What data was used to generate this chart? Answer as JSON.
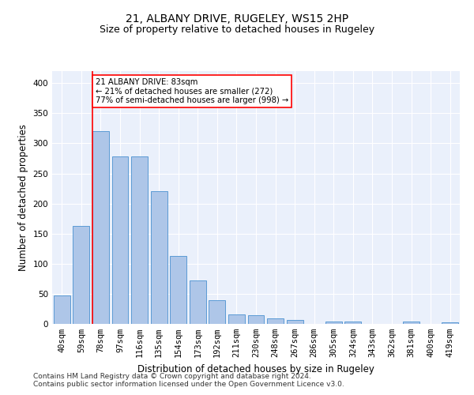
{
  "title1": "21, ALBANY DRIVE, RUGELEY, WS15 2HP",
  "title2": "Size of property relative to detached houses in Rugeley",
  "xlabel": "Distribution of detached houses by size in Rugeley",
  "ylabel": "Number of detached properties",
  "bar_labels": [
    "40sqm",
    "59sqm",
    "78sqm",
    "97sqm",
    "116sqm",
    "135sqm",
    "154sqm",
    "173sqm",
    "192sqm",
    "211sqm",
    "230sqm",
    "248sqm",
    "267sqm",
    "286sqm",
    "305sqm",
    "324sqm",
    "343sqm",
    "362sqm",
    "381sqm",
    "400sqm",
    "419sqm"
  ],
  "bar_values": [
    47,
    163,
    320,
    278,
    278,
    220,
    113,
    72,
    39,
    16,
    15,
    9,
    7,
    0,
    4,
    4,
    0,
    0,
    4,
    0,
    3
  ],
  "bar_color": "#aec6e8",
  "bar_edge_color": "#5b9bd5",
  "property_line_index": 2,
  "annotation_text": "21 ALBANY DRIVE: 83sqm\n← 21% of detached houses are smaller (272)\n77% of semi-detached houses are larger (998) →",
  "annotation_box_color": "white",
  "annotation_box_edge": "red",
  "red_line_color": "red",
  "footer1": "Contains HM Land Registry data © Crown copyright and database right 2024.",
  "footer2": "Contains public sector information licensed under the Open Government Licence v3.0.",
  "ylim": [
    0,
    420
  ],
  "yticks": [
    0,
    50,
    100,
    150,
    200,
    250,
    300,
    350,
    400
  ],
  "background_color": "#eaf0fb",
  "grid_color": "white",
  "title1_fontsize": 10,
  "title2_fontsize": 9,
  "axis_label_fontsize": 8.5,
  "tick_fontsize": 7.5,
  "footer_fontsize": 6.5
}
